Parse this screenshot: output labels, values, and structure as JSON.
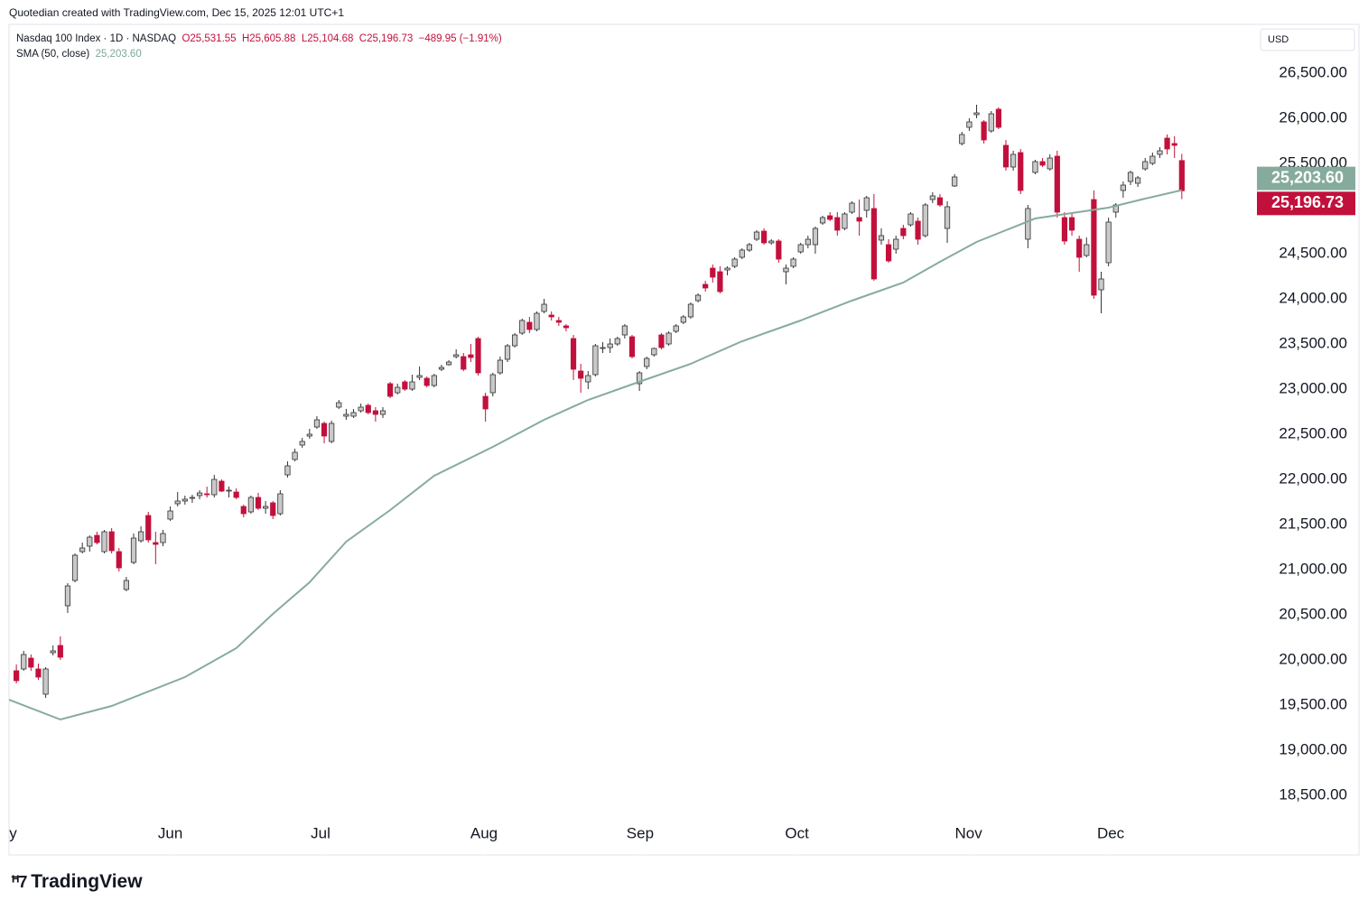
{
  "chart_data": {
    "type": "candlestick",
    "header": "Quotedian created with TradingView.com, Dec 15, 2025 12:01 UTC+1",
    "title": "Nasdaq 100 Index · 1D · NASDAQ",
    "ohlc_labels": [
      "O25,531.55",
      "H25,605.88",
      "L25,104.68",
      "C25,196.73",
      "−489.95 (−1.91%)"
    ],
    "sma_name": "SMA (50, close)",
    "sma_label": "25,203.60",
    "currency": "USD",
    "brand": "TradingView",
    "up_color": "#c9c9c9",
    "down_color": "#c2103c",
    "sma_color": "#86ab9c",
    "xlim": [
      -1,
      169
    ],
    "ylim": [
      17840,
      27040
    ],
    "xticks": [
      {
        "value": -1.9,
        "label": "May"
      },
      {
        "value": 21,
        "label": "Jun"
      },
      {
        "value": 41.5,
        "label": "Jul"
      },
      {
        "value": 63.8,
        "label": "Aug"
      },
      {
        "value": 85.1,
        "label": "Sep"
      },
      {
        "value": 106.5,
        "label": "Oct"
      },
      {
        "value": 129.9,
        "label": "Nov"
      },
      {
        "value": 149.3,
        "label": "Dec"
      }
    ],
    "yticks": [
      {
        "value": 18500,
        "label": "18,500.00"
      },
      {
        "value": 19000,
        "label": "19,000.00"
      },
      {
        "value": 19500,
        "label": "19,500.00"
      },
      {
        "value": 20000,
        "label": "20,000.00"
      },
      {
        "value": 20500,
        "label": "20,500.00"
      },
      {
        "value": 21000,
        "label": "21,000.00"
      },
      {
        "value": 21500,
        "label": "21,500.00"
      },
      {
        "value": 22000,
        "label": "22,000.00"
      },
      {
        "value": 22500,
        "label": "22,500.00"
      },
      {
        "value": 23000,
        "label": "23,000.00"
      },
      {
        "value": 23500,
        "label": "23,500.00"
      },
      {
        "value": 24000,
        "label": "24,000.00"
      },
      {
        "value": 24500,
        "label": "24,500.00"
      },
      {
        "value": 25000,
        "label": "25,000.00"
      },
      {
        "value": 25500,
        "label": "25,500.00"
      },
      {
        "value": 26000,
        "label": "26,000.00"
      },
      {
        "value": 26500,
        "label": "26,500.00"
      }
    ],
    "ohlc": [
      [
        19880,
        19950,
        19740,
        19770
      ],
      [
        19900,
        20100,
        19880,
        20060
      ],
      [
        20020,
        20060,
        19880,
        19920
      ],
      [
        19900,
        19960,
        19780,
        19810
      ],
      [
        19620,
        19920,
        19580,
        19900
      ],
      [
        20080,
        20160,
        20050,
        20100
      ],
      [
        20160,
        20260,
        20000,
        20030
      ],
      [
        20600,
        20850,
        20520,
        20820
      ],
      [
        20880,
        21180,
        20860,
        21160
      ],
      [
        21200,
        21300,
        21180,
        21240
      ],
      [
        21260,
        21380,
        21200,
        21360
      ],
      [
        21380,
        21420,
        21280,
        21300
      ],
      [
        21200,
        21440,
        21180,
        21420
      ],
      [
        21420,
        21460,
        21180,
        21210
      ],
      [
        21200,
        21240,
        20980,
        21020
      ],
      [
        20780,
        20920,
        20760,
        20880
      ],
      [
        21080,
        21400,
        21060,
        21350
      ],
      [
        21320,
        21480,
        21300,
        21420
      ],
      [
        21600,
        21640,
        21300,
        21330
      ],
      [
        21300,
        21420,
        21060,
        21280
      ],
      [
        21300,
        21440,
        21260,
        21400
      ],
      [
        21560,
        21700,
        21540,
        21650
      ],
      [
        21730,
        21860,
        21700,
        21760
      ],
      [
        21760,
        21820,
        21720,
        21780
      ],
      [
        21790,
        21830,
        21740,
        21800
      ],
      [
        21820,
        21880,
        21780,
        21850
      ],
      [
        21840,
        21920,
        21800,
        21830
      ],
      [
        21830,
        22050,
        21800,
        22000
      ],
      [
        21980,
        22000,
        21860,
        21870
      ],
      [
        21880,
        21920,
        21800,
        21880
      ],
      [
        21860,
        21900,
        21780,
        21800
      ],
      [
        21700,
        21720,
        21580,
        21620
      ],
      [
        21640,
        21820,
        21620,
        21800
      ],
      [
        21800,
        21850,
        21660,
        21680
      ],
      [
        21680,
        21760,
        21620,
        21700
      ],
      [
        21740,
        21760,
        21560,
        21600
      ],
      [
        21620,
        21880,
        21600,
        21840
      ],
      [
        22050,
        22200,
        22020,
        22150
      ],
      [
        22220,
        22340,
        22200,
        22300
      ],
      [
        22380,
        22460,
        22350,
        22420
      ],
      [
        22480,
        22560,
        22450,
        22500
      ],
      [
        22580,
        22700,
        22560,
        22660
      ],
      [
        22620,
        22640,
        22400,
        22480
      ],
      [
        22420,
        22650,
        22400,
        22620
      ],
      [
        22800,
        22880,
        22780,
        22850
      ],
      [
        22700,
        22780,
        22660,
        22720
      ],
      [
        22700,
        22780,
        22680,
        22740
      ],
      [
        22760,
        22840,
        22740,
        22800
      ],
      [
        22820,
        22840,
        22720,
        22740
      ],
      [
        22760,
        22800,
        22640,
        22720
      ],
      [
        22720,
        22800,
        22680,
        22760
      ],
      [
        23060,
        23080,
        22900,
        22920
      ],
      [
        22960,
        23060,
        22940,
        23020
      ],
      [
        23080,
        23100,
        22980,
        23000
      ],
      [
        23000,
        23160,
        22980,
        23080
      ],
      [
        23130,
        23250,
        23100,
        23150
      ],
      [
        23120,
        23140,
        23020,
        23040
      ],
      [
        23040,
        23170,
        23020,
        23150
      ],
      [
        23220,
        23270,
        23200,
        23240
      ],
      [
        23270,
        23320,
        23260,
        23300
      ],
      [
        23360,
        23440,
        23340,
        23380
      ],
      [
        23360,
        23400,
        23200,
        23220
      ],
      [
        23380,
        23500,
        23300,
        23350
      ],
      [
        23560,
        23580,
        23150,
        23180
      ],
      [
        22920,
        22960,
        22640,
        22780
      ],
      [
        22960,
        23180,
        22920,
        23160
      ],
      [
        23180,
        23360,
        23160,
        23320
      ],
      [
        23330,
        23500,
        23300,
        23480
      ],
      [
        23480,
        23620,
        23460,
        23600
      ],
      [
        23620,
        23780,
        23600,
        23760
      ],
      [
        23740,
        23800,
        23620,
        23660
      ],
      [
        23660,
        23860,
        23640,
        23840
      ],
      [
        23860,
        24000,
        23840,
        23940
      ],
      [
        23820,
        23860,
        23760,
        23800
      ],
      [
        23760,
        23800,
        23700,
        23740
      ],
      [
        23700,
        23720,
        23640,
        23680
      ],
      [
        23560,
        23600,
        23100,
        23220
      ],
      [
        23200,
        23280,
        22960,
        23120
      ],
      [
        23080,
        23200,
        23000,
        23150
      ],
      [
        23160,
        23500,
        23140,
        23480
      ],
      [
        23460,
        23520,
        23400,
        23460
      ],
      [
        23460,
        23560,
        23400,
        23500
      ],
      [
        23500,
        23580,
        23480,
        23560
      ],
      [
        23600,
        23720,
        23560,
        23700
      ],
      [
        23580,
        23600,
        23340,
        23360
      ],
      [
        23060,
        23200,
        22980,
        23180
      ],
      [
        23250,
        23360,
        23220,
        23340
      ],
      [
        23380,
        23460,
        23360,
        23450
      ],
      [
        23600,
        23620,
        23440,
        23460
      ],
      [
        23500,
        23640,
        23480,
        23620
      ],
      [
        23640,
        23720,
        23620,
        23700
      ],
      [
        23740,
        23820,
        23720,
        23800
      ],
      [
        23800,
        23960,
        23780,
        23940
      ],
      [
        23980,
        24060,
        23960,
        24040
      ],
      [
        24160,
        24200,
        24080,
        24120
      ],
      [
        24340,
        24380,
        24180,
        24240
      ],
      [
        24300,
        24360,
        24060,
        24080
      ],
      [
        24320,
        24360,
        24260,
        24340
      ],
      [
        24360,
        24460,
        24340,
        24440
      ],
      [
        24460,
        24560,
        24440,
        24540
      ],
      [
        24540,
        24620,
        24520,
        24600
      ],
      [
        24660,
        24760,
        24640,
        24740
      ],
      [
        24750,
        24780,
        24600,
        24620
      ],
      [
        24620,
        24660,
        24600,
        24640
      ],
      [
        24640,
        24660,
        24400,
        24440
      ],
      [
        24300,
        24380,
        24160,
        24340
      ],
      [
        24360,
        24460,
        24340,
        24440
      ],
      [
        24520,
        24620,
        24500,
        24600
      ],
      [
        24600,
        24700,
        24560,
        24660
      ],
      [
        24600,
        24800,
        24500,
        24780
      ],
      [
        24840,
        24920,
        24820,
        24900
      ],
      [
        24920,
        24960,
        24860,
        24880
      ],
      [
        24900,
        24960,
        24700,
        24760
      ],
      [
        24780,
        24960,
        24760,
        24940
      ],
      [
        24960,
        25080,
        24940,
        25060
      ],
      [
        24900,
        25100,
        24700,
        24860
      ],
      [
        24980,
        25140,
        24900,
        25120
      ],
      [
        25000,
        25160,
        24200,
        24220
      ],
      [
        24650,
        24780,
        24600,
        24700
      ],
      [
        24600,
        24660,
        24400,
        24420
      ],
      [
        24550,
        24700,
        24500,
        24660
      ],
      [
        24780,
        24820,
        24660,
        24700
      ],
      [
        24820,
        24960,
        24800,
        24940
      ],
      [
        24860,
        24900,
        24600,
        24660
      ],
      [
        24700,
        25060,
        24680,
        25040
      ],
      [
        25100,
        25180,
        25060,
        25140
      ],
      [
        25120,
        25160,
        25020,
        25040
      ],
      [
        24780,
        25080,
        24620,
        25020
      ],
      [
        25250,
        25380,
        25240,
        25350
      ],
      [
        25720,
        25850,
        25700,
        25820
      ],
      [
        25900,
        26000,
        25860,
        25960
      ],
      [
        26040,
        26150,
        26000,
        26060
      ],
      [
        25960,
        25980,
        25720,
        25760
      ],
      [
        25860,
        26080,
        25840,
        26050
      ],
      [
        26100,
        26120,
        25880,
        25900
      ],
      [
        25700,
        25760,
        25420,
        25460
      ],
      [
        25460,
        25640,
        25420,
        25600
      ],
      [
        25620,
        25660,
        25160,
        25200
      ],
      [
        24660,
        25040,
        24560,
        25000
      ],
      [
        25400,
        25540,
        25380,
        25520
      ],
      [
        25520,
        25560,
        25460,
        25480
      ],
      [
        25440,
        25600,
        25420,
        25560
      ],
      [
        25580,
        25640,
        24900,
        24960
      ],
      [
        24900,
        24960,
        24600,
        24640
      ],
      [
        24900,
        24940,
        24700,
        24760
      ],
      [
        24660,
        24700,
        24300,
        24460
      ],
      [
        24480,
        24680,
        24460,
        24600
      ],
      [
        25100,
        25200,
        24000,
        24040
      ],
      [
        24100,
        24300,
        23840,
        24220
      ],
      [
        24400,
        24900,
        24360,
        24850
      ],
      [
        24960,
        25060,
        24900,
        25040
      ],
      [
        25200,
        25300,
        25120,
        25260
      ],
      [
        25300,
        25420,
        25260,
        25400
      ],
      [
        25280,
        25360,
        25240,
        25340
      ],
      [
        25440,
        25560,
        25420,
        25520
      ],
      [
        25500,
        25620,
        25480,
        25580
      ],
      [
        25600,
        25680,
        25560,
        25640
      ],
      [
        25780,
        25820,
        25600,
        25660
      ],
      [
        25720,
        25800,
        25560,
        25700
      ],
      [
        25531.55,
        25605.88,
        25104.68,
        25196.73
      ]
    ],
    "sma": {
      "x": [
        -1,
        6,
        13,
        23,
        30,
        35,
        40,
        45,
        51,
        57,
        65,
        72,
        78,
        86,
        92,
        99,
        107,
        114,
        121,
        126,
        131,
        135,
        139,
        144,
        149,
        154,
        159
      ],
      "values": [
        19560,
        19340,
        19490,
        19810,
        20130,
        20510,
        20860,
        21310,
        21660,
        22040,
        22360,
        22660,
        22880,
        23110,
        23280,
        23530,
        23760,
        23980,
        24180,
        24410,
        24630,
        24760,
        24890,
        24950,
        25010,
        25110,
        25203.6
      ]
    },
    "last_price": {
      "value": 25196.73,
      "label": "25,196.73"
    },
    "sma_last": {
      "value": 25203.6,
      "label": "25,203.60"
    }
  }
}
